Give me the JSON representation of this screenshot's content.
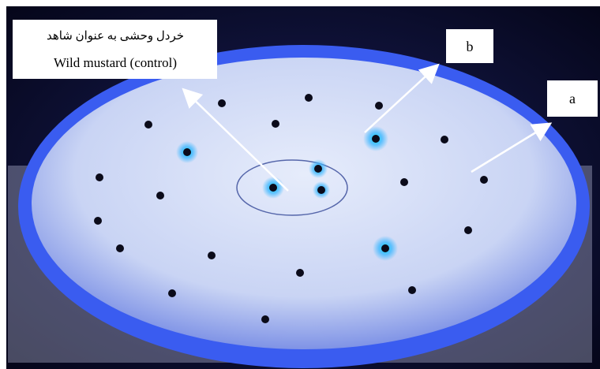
{
  "labels": {
    "control": {
      "persian": "خردل وحشی به عنوان شاهد",
      "english": "Wild mustard (control)"
    },
    "b": "b",
    "a": "a"
  }
}
